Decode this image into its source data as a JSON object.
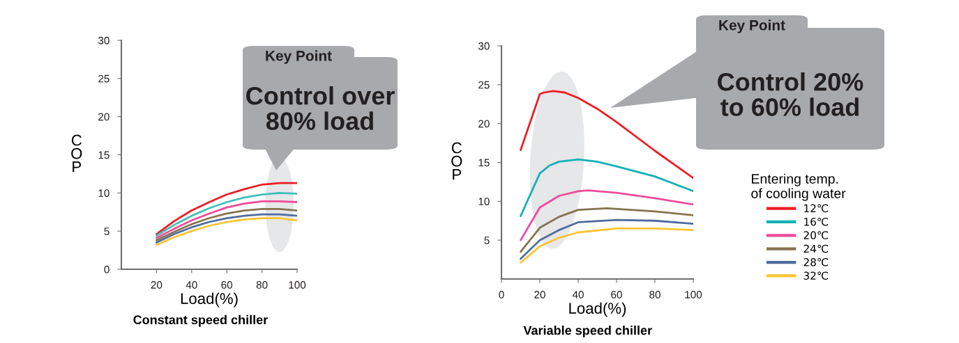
{
  "chart_data": [
    {
      "type": "line",
      "title": "Constant speed chiller",
      "xlabel": "Load(%)",
      "ylabel": "COP",
      "annotations": [
        "Key Point",
        "Control over 80% load"
      ],
      "x": [
        20,
        30,
        40,
        50,
        60,
        70,
        80,
        90,
        100
      ],
      "xlim": [
        0,
        100
      ],
      "xticks": [
        20,
        40,
        60,
        80,
        100
      ],
      "ylim": [
        0,
        30
      ],
      "yticks": [
        0,
        5,
        10,
        15,
        20,
        25,
        30
      ],
      "grid": false,
      "legend": false,
      "series": [
        {
          "color": "#ee1c25",
          "values": [
            4.6,
            6.3,
            7.7,
            8.8,
            9.8,
            10.5,
            11.1,
            11.3,
            11.3
          ]
        },
        {
          "color": "#3fbfb9",
          "values": [
            4.4,
            5.8,
            7.0,
            8.0,
            8.8,
            9.4,
            9.8,
            10.0,
            9.9
          ]
        },
        {
          "color": "#ee4b9b",
          "values": [
            4.1,
            5.3,
            6.4,
            7.3,
            8.1,
            8.6,
            8.9,
            8.9,
            8.8
          ]
        },
        {
          "color": "#85734f",
          "values": [
            3.8,
            4.9,
            5.9,
            6.7,
            7.3,
            7.7,
            7.9,
            7.9,
            7.7
          ]
        },
        {
          "color": "#4f6b9f",
          "values": [
            3.5,
            4.6,
            5.5,
            6.2,
            6.7,
            7.0,
            7.2,
            7.2,
            7.0
          ]
        },
        {
          "color": "#fdc431",
          "values": [
            3.2,
            4.2,
            5.0,
            5.7,
            6.2,
            6.5,
            6.7,
            6.7,
            6.4
          ]
        }
      ]
    },
    {
      "type": "line",
      "title": "Variable speed chiller",
      "xlabel": "Load(%)",
      "ylabel": "COP",
      "annotations": [
        "Key Point",
        "Control 20% to 60% load"
      ],
      "legend_title": "Entering temp. of cooling water",
      "xlim": [
        0,
        100
      ],
      "xticks": [
        0,
        20,
        40,
        60,
        80,
        100
      ],
      "ylim": [
        0,
        30
      ],
      "yticks": [
        5,
        10,
        15,
        20,
        25,
        30
      ],
      "grid": false,
      "legend": "right",
      "series": [
        {
          "name": "12℃",
          "color": "#ee1c25",
          "x": [
            10,
            20,
            22,
            27,
            33,
            40,
            50,
            60,
            80,
            100
          ],
          "values": [
            16.6,
            23.8,
            24.0,
            24.2,
            24.0,
            23.3,
            21.9,
            20.2,
            16.5,
            13.0
          ]
        },
        {
          "name": "16℃",
          "color": "#13b1b5",
          "x": [
            10,
            20,
            25,
            30,
            40,
            50,
            60,
            80,
            100
          ],
          "values": [
            8.1,
            13.6,
            14.6,
            15.1,
            15.4,
            15.1,
            14.5,
            13.2,
            11.3
          ]
        },
        {
          "name": "20℃",
          "color": "#ee4b9b",
          "x": [
            10,
            20,
            30,
            40,
            45,
            60,
            80,
            100
          ],
          "values": [
            5.0,
            9.2,
            10.7,
            11.3,
            11.4,
            11.1,
            10.4,
            9.6
          ]
        },
        {
          "name": "24℃",
          "color": "#85734f",
          "x": [
            10,
            20,
            30,
            40,
            55,
            80,
            100
          ],
          "values": [
            3.5,
            6.6,
            8.0,
            8.9,
            9.1,
            8.7,
            8.2
          ]
        },
        {
          "name": "28℃",
          "color": "#4f6b9f",
          "x": [
            10,
            20,
            30,
            40,
            60,
            80,
            100
          ],
          "values": [
            2.6,
            5.0,
            6.3,
            7.3,
            7.6,
            7.5,
            7.1
          ]
        },
        {
          "name": "32℃",
          "color": "#fdc431",
          "x": [
            10,
            20,
            30,
            40,
            60,
            80,
            100
          ],
          "values": [
            2.1,
            4.2,
            5.3,
            6.0,
            6.5,
            6.5,
            6.3
          ]
        }
      ]
    }
  ]
}
